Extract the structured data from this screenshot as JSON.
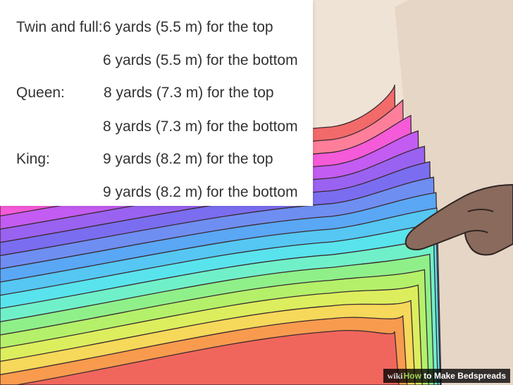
{
  "fabric_table": {
    "rows": [
      {
        "size": "Twin and full:",
        "amount": "6 yards (5.5 m) for the top"
      },
      {
        "size": "",
        "amount": "6 yards (5.5 m) for the bottom"
      },
      {
        "size": "Queen:",
        "amount": "8 yards (7.3 m) for the top"
      },
      {
        "size": "",
        "amount": "8 yards (7.3 m) for the bottom"
      },
      {
        "size": "King:",
        "amount": "9 yards (8.2 m) for the top"
      },
      {
        "size": "",
        "amount": "9 yards (8.2 m) for the bottom"
      }
    ]
  },
  "watermark": {
    "wiki": "wiki",
    "how": "How",
    "rest": " to Make Bedspreads"
  },
  "colors": {
    "wall": "#efe3d6",
    "finger_skin": "#8a6a5c",
    "table_text": "#333333",
    "fabric_stack": [
      "#f26a6a",
      "#ff7f9a",
      "#f55ad9",
      "#c35cf2",
      "#9a62f0",
      "#7a6df0",
      "#6f8ef2",
      "#5aa7f5",
      "#55c7f2",
      "#59e3ec",
      "#70f0c9",
      "#8ff08a",
      "#b4f06a",
      "#dcee5e",
      "#f6d85a",
      "#f89b4e",
      "#f0665c"
    ]
  },
  "icons": {
    "pointing_hand": "pointing-hand-icon"
  }
}
